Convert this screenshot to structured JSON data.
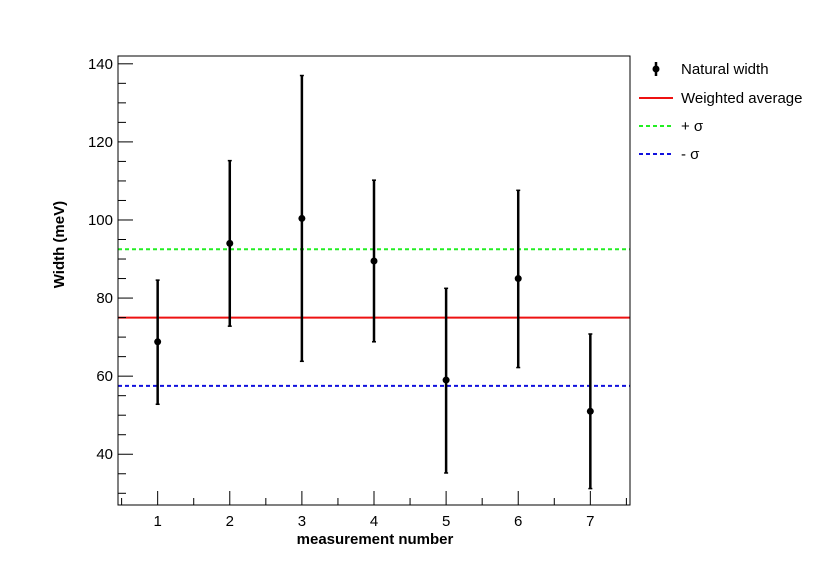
{
  "chart_data": {
    "type": "scatter",
    "xlabel": "measurement number",
    "ylabel": "Width (meV)",
    "xlim": [
      0.45,
      7.55
    ],
    "ylim": [
      27,
      142
    ],
    "x_ticks": [
      1,
      2,
      3,
      4,
      5,
      6,
      7
    ],
    "y_ticks": [
      40,
      60,
      80,
      100,
      120,
      140
    ],
    "grid": false,
    "legend_position": "top-right, outside plot",
    "series": [
      {
        "name": "Natural width",
        "style": "points-with-error-bars",
        "color": "#000000",
        "points": [
          {
            "x": 1,
            "y": 68.8,
            "ylow": 52.8,
            "yhigh": 84.6
          },
          {
            "x": 2,
            "y": 94.0,
            "ylow": 72.8,
            "yhigh": 115.2
          },
          {
            "x": 3,
            "y": 100.4,
            "ylow": 63.8,
            "yhigh": 137.0
          },
          {
            "x": 4,
            "y": 89.5,
            "ylow": 68.8,
            "yhigh": 110.2
          },
          {
            "x": 5,
            "y": 59.0,
            "ylow": 35.2,
            "yhigh": 82.5
          },
          {
            "x": 6,
            "y": 85.0,
            "ylow": 62.2,
            "yhigh": 107.6
          },
          {
            "x": 7,
            "y": 51.0,
            "ylow": 31.2,
            "yhigh": 70.8
          }
        ]
      },
      {
        "name": "Weighted average",
        "style": "hline-solid",
        "color": "#ee1111",
        "y": 75.0
      },
      {
        "name": "+ σ",
        "style": "hline-dashed",
        "color": "#22ee22",
        "y": 92.5
      },
      {
        "name": "- σ",
        "style": "hline-dashed",
        "color": "#1111dd",
        "y": 57.5
      }
    ]
  }
}
